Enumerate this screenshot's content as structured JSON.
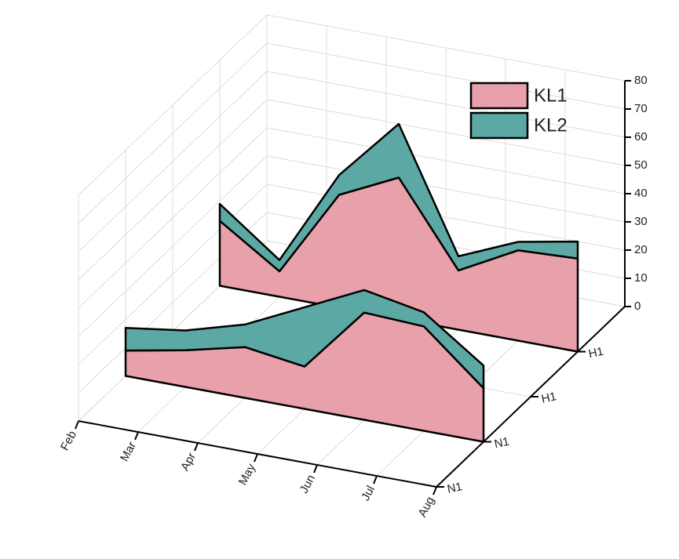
{
  "chart_data": {
    "type": "area3d",
    "categories": [
      "Feb",
      "Mar",
      "Apr",
      "May",
      "Jun",
      "Jul",
      "Aug"
    ],
    "zcategories": [
      "N1",
      "N1",
      "H1",
      "H1"
    ],
    "series": [
      {
        "name": "KL1",
        "color": "#e8a0ab",
        "values": [
          null,
          [
            9,
            13,
            18,
            15,
            38,
            37,
            19
          ],
          null,
          [
            23,
            9,
            40,
            50,
            21,
            32,
            33
          ]
        ]
      },
      {
        "name": "KL2",
        "color": "#5ba8a4",
        "values": [
          null,
          [
            8,
            7,
            8,
            21,
            8,
            5,
            8
          ],
          null,
          [
            6,
            4,
            7,
            19,
            5,
            3,
            6
          ]
        ]
      }
    ],
    "ylim": [
      0,
      80
    ],
    "yticks": [
      0,
      10,
      20,
      30,
      40,
      50,
      60,
      70,
      80
    ],
    "grid": true,
    "legend": "upper right"
  }
}
